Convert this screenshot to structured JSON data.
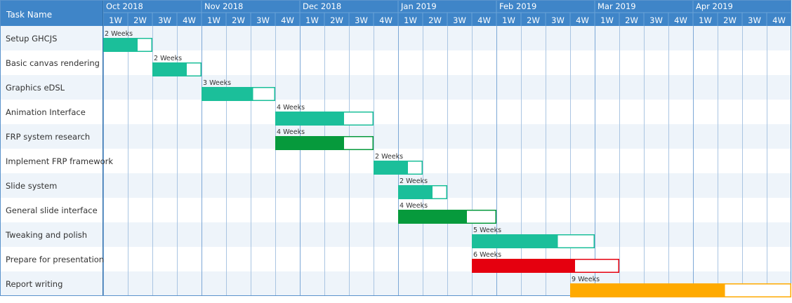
{
  "header": {
    "task_column_label": "Task Name",
    "months": [
      "Oct 2018",
      "Nov 2018",
      "Dec 2018",
      "Jan 2019",
      "Feb 2019",
      "Mar 2019",
      "Apr 2019"
    ],
    "weeks": [
      "1W",
      "2W",
      "3W",
      "4W"
    ]
  },
  "colors": {
    "header_bg": "#3f85c8",
    "header_text": "#ffffff",
    "row_alt_bg": "#eef4fa",
    "grid_line": "#aac5e2",
    "bar_teal": "#1bbf9a",
    "bar_green": "#069a3c",
    "bar_red": "#e5000f",
    "bar_orange": "#ffaa00",
    "task_text": "#333333",
    "bar_label_text": "#333333"
  },
  "chart_data": {
    "type": "gantt",
    "time_unit": "week",
    "x_axis_start": "Oct 2018 1W",
    "tasks": [
      {
        "name": "Setup GHCJS",
        "start_week": 1,
        "duration_weeks": 2,
        "duration_label": "2 Weeks",
        "progress": 0.7,
        "color": "teal"
      },
      {
        "name": "Basic canvas rendering",
        "start_week": 3,
        "duration_weeks": 2,
        "duration_label": "2 Weeks",
        "progress": 0.7,
        "color": "teal"
      },
      {
        "name": "Graphics eDSL",
        "start_week": 5,
        "duration_weeks": 3,
        "duration_label": "3 Weeks",
        "progress": 0.7,
        "color": "teal"
      },
      {
        "name": "Animation Interface",
        "start_week": 8,
        "duration_weeks": 4,
        "duration_label": "4 Weeks",
        "progress": 0.7,
        "color": "teal"
      },
      {
        "name": "FRP system research",
        "start_week": 8,
        "duration_weeks": 4,
        "duration_label": "4 Weeks",
        "progress": 0.7,
        "color": "green"
      },
      {
        "name": "Implement FRP framework",
        "start_week": 12,
        "duration_weeks": 2,
        "duration_label": "2 Weeks",
        "progress": 0.7,
        "color": "teal"
      },
      {
        "name": "Slide system",
        "start_week": 13,
        "duration_weeks": 2,
        "duration_label": "2 Weeks",
        "progress": 0.7,
        "color": "teal"
      },
      {
        "name": "General slide interface",
        "start_week": 13,
        "duration_weeks": 4,
        "duration_label": "4 Weeks",
        "progress": 0.7,
        "color": "green"
      },
      {
        "name": "Tweaking and polish",
        "start_week": 16,
        "duration_weeks": 5,
        "duration_label": "5 Weeks",
        "progress": 0.7,
        "color": "teal"
      },
      {
        "name": "Prepare for presentation",
        "start_week": 16,
        "duration_weeks": 6,
        "duration_label": "6 Weeks",
        "progress": 0.7,
        "color": "red"
      },
      {
        "name": "Report writing",
        "start_week": 20,
        "duration_weeks": 9,
        "duration_label": "9 Weeks",
        "progress": 0.7,
        "color": "orange"
      }
    ]
  }
}
